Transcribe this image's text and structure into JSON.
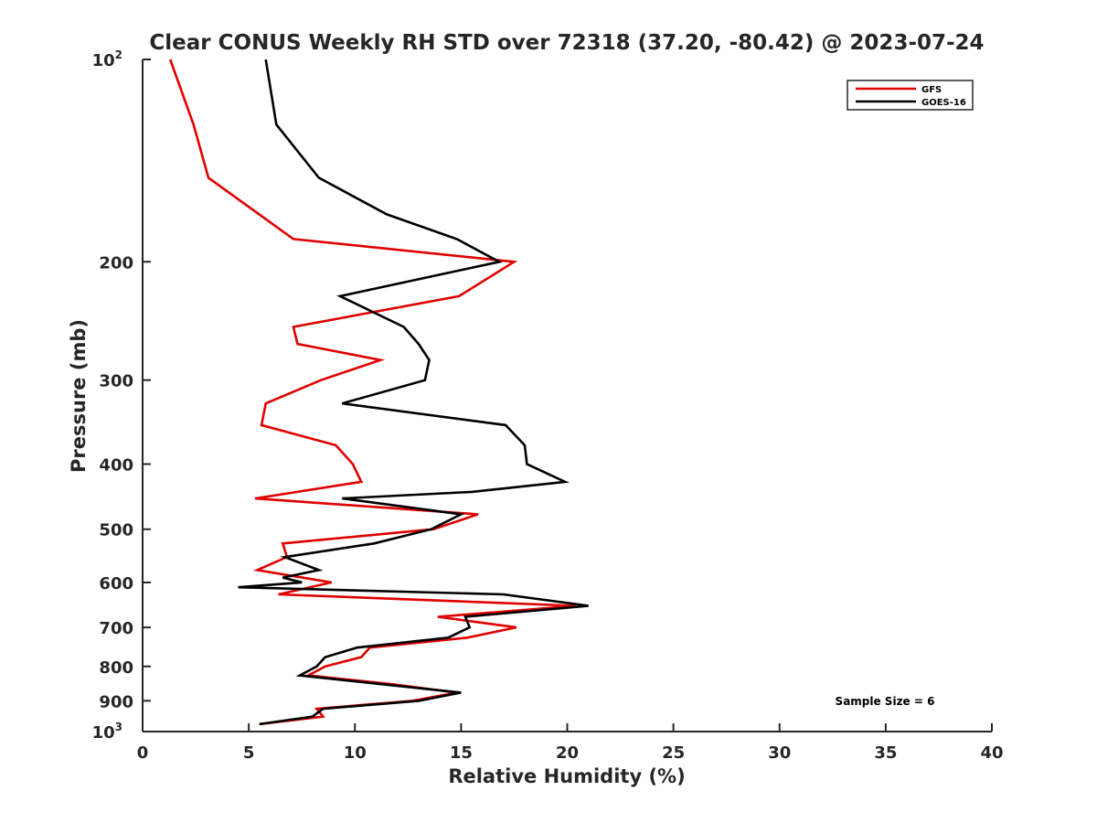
{
  "chart_data": {
    "type": "line",
    "title": "Clear CONUS Weekly RH STD over 72318 (37.20, -80.42) @ 2023-07-24",
    "xlabel": "Relative Humidity (%)",
    "ylabel": "Pressure (mb)",
    "xlim": [
      0,
      40
    ],
    "ylim": [
      100,
      1000
    ],
    "y_scale": "log",
    "y_reversed": true,
    "x_ticks": [
      0,
      5,
      10,
      15,
      20,
      25,
      30,
      35,
      40
    ],
    "y_ticks": [
      {
        "value": 100,
        "label": "10",
        "exponent": "2"
      },
      {
        "value": 200,
        "label": "200"
      },
      {
        "value": 300,
        "label": "300"
      },
      {
        "value": 400,
        "label": "400"
      },
      {
        "value": 500,
        "label": "500"
      },
      {
        "value": 600,
        "label": "600"
      },
      {
        "value": 700,
        "label": "700"
      },
      {
        "value": 800,
        "label": "800"
      },
      {
        "value": 900,
        "label": "900"
      },
      {
        "value": 1000,
        "label": "10",
        "exponent": "3"
      }
    ],
    "grid": false,
    "legend_position": "top-right",
    "annotation": "Sample Size = 6",
    "series": [
      {
        "name": "GFS",
        "color": "#e00000",
        "points": [
          [
            1.3,
            100
          ],
          [
            2.4,
            125
          ],
          [
            3.1,
            150
          ],
          [
            7.1,
            185
          ],
          [
            17.5,
            200
          ],
          [
            14.9,
            225
          ],
          [
            7.1,
            250
          ],
          [
            7.3,
            265
          ],
          [
            11.2,
            280
          ],
          [
            8.4,
            300
          ],
          [
            5.8,
            325
          ],
          [
            5.6,
            350
          ],
          [
            9.1,
            375
          ],
          [
            9.9,
            400
          ],
          [
            10.3,
            425
          ],
          [
            5.3,
            450
          ],
          [
            15.8,
            475
          ],
          [
            13.7,
            500
          ],
          [
            6.6,
            525
          ],
          [
            6.8,
            550
          ],
          [
            5.4,
            575
          ],
          [
            8.9,
            600
          ],
          [
            6.4,
            625
          ],
          [
            20.4,
            650
          ],
          [
            13.9,
            675
          ],
          [
            17.6,
            700
          ],
          [
            15.3,
            725
          ],
          [
            10.7,
            750
          ],
          [
            10.3,
            775
          ],
          [
            8.6,
            800
          ],
          [
            7.8,
            825
          ],
          [
            11.7,
            850
          ],
          [
            14.8,
            875
          ],
          [
            12.7,
            900
          ],
          [
            8.2,
            925
          ],
          [
            8.5,
            950
          ],
          [
            5.5,
            975
          ]
        ]
      },
      {
        "name": "GOES-16",
        "color": "#000000",
        "points": [
          [
            5.8,
            100
          ],
          [
            6.3,
            125
          ],
          [
            8.3,
            150
          ],
          [
            11.5,
            170
          ],
          [
            14.8,
            185
          ],
          [
            16.8,
            200
          ],
          [
            9.3,
            225
          ],
          [
            12.3,
            250
          ],
          [
            13.0,
            265
          ],
          [
            13.5,
            280
          ],
          [
            13.3,
            300
          ],
          [
            9.4,
            325
          ],
          [
            17.1,
            350
          ],
          [
            18.0,
            375
          ],
          [
            18.1,
            400
          ],
          [
            19.9,
            425
          ],
          [
            15.5,
            440
          ],
          [
            9.4,
            450
          ],
          [
            15.0,
            475
          ],
          [
            13.6,
            500
          ],
          [
            10.9,
            525
          ],
          [
            6.7,
            550
          ],
          [
            8.3,
            575
          ],
          [
            6.6,
            590
          ],
          [
            7.5,
            600
          ],
          [
            4.5,
            610
          ],
          [
            17.0,
            625
          ],
          [
            21.0,
            650
          ],
          [
            15.2,
            675
          ],
          [
            15.4,
            700
          ],
          [
            14.4,
            725
          ],
          [
            10.1,
            750
          ],
          [
            8.6,
            775
          ],
          [
            8.2,
            800
          ],
          [
            7.4,
            825
          ],
          [
            11.2,
            850
          ],
          [
            15.0,
            875
          ],
          [
            13.0,
            900
          ],
          [
            8.5,
            925
          ],
          [
            8.0,
            950
          ],
          [
            5.5,
            975
          ]
        ]
      }
    ]
  }
}
